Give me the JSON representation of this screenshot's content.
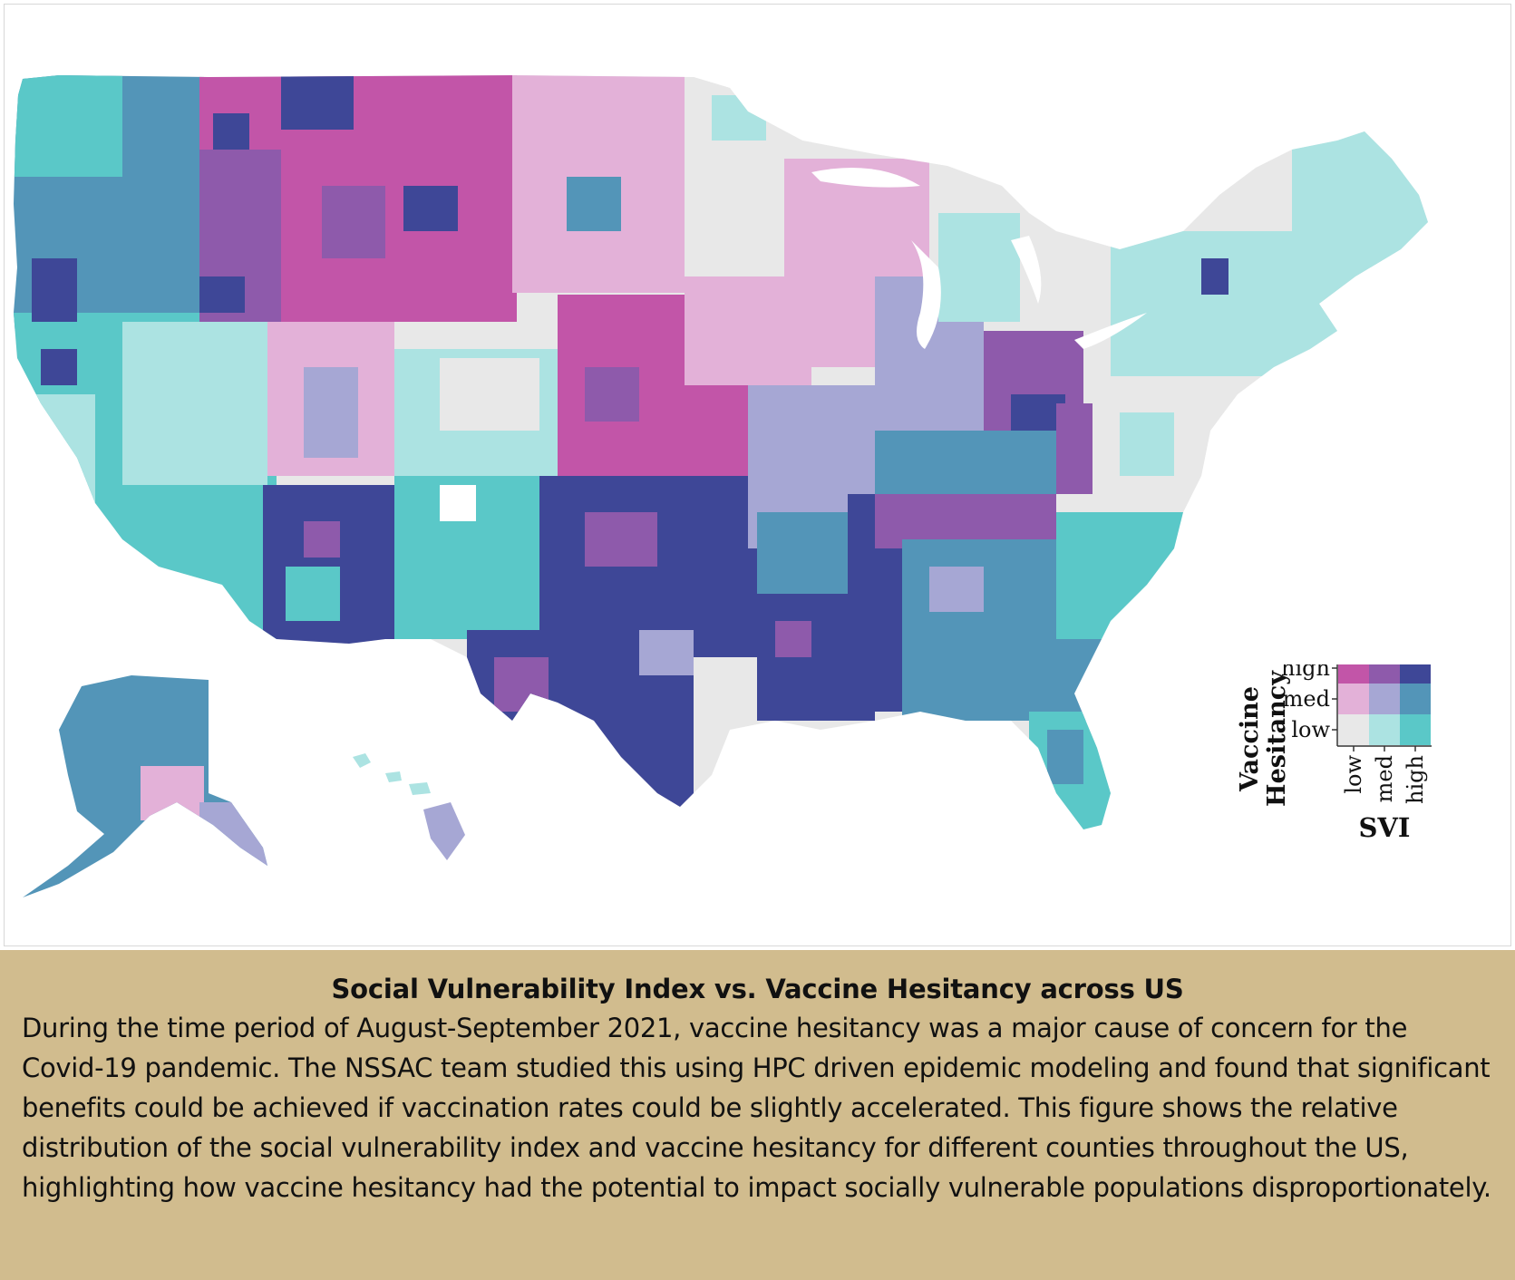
{
  "legend": {
    "y_title_line1": "Vaccine",
    "y_title_line2": "Hesitancy",
    "x_title": "SVI",
    "y_ticks": [
      "high",
      "med",
      "low"
    ],
    "x_ticks": [
      "low",
      "med",
      "high"
    ],
    "matrix_colors": [
      [
        "#c255a8",
        "#8e5aab",
        "#3e4797"
      ],
      [
        "#e3b1d8",
        "#a6a7d4",
        "#5395b8"
      ],
      [
        "#e8e8e8",
        "#ace3e2",
        "#5ac8c8"
      ]
    ]
  },
  "caption": {
    "title": "Social Vulnerability Index vs. Vaccine Hesitancy across US",
    "body": "During the time period of August-September 2021, vaccine hesitancy was a major cause of concern for the Covid-19 pandemic. The NSSAC team studied this using HPC driven epidemic modeling and found that significant benefits could be achieved if vaccination rates could be slightly accelerated. This figure shows the relative distribution of the social vulnerability index and vaccine hesitancy for different counties throughout the US, highlighting how vaccine hesitancy had the potential to impact socially vulnerable populations disproportionately."
  }
}
